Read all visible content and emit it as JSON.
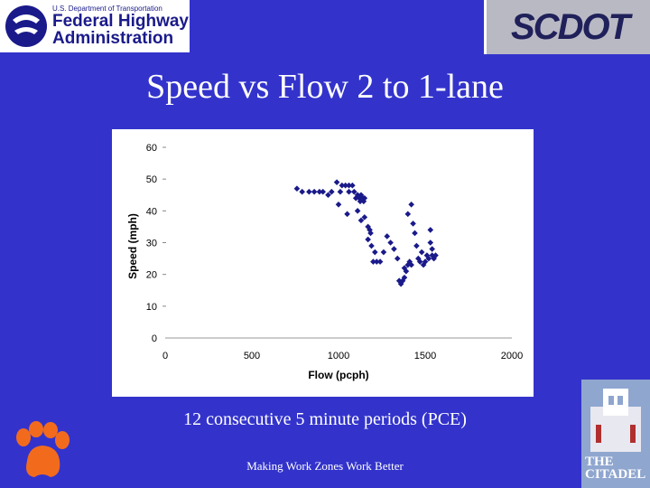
{
  "header": {
    "fhwa_small": "U.S. Department of Transportation",
    "fhwa_line1": "Federal Highway",
    "fhwa_line2": "Administration",
    "scdot": "SCDOT"
  },
  "slide": {
    "title": "Speed vs Flow  2 to 1-lane",
    "subtitle": "12 consecutive 5 minute periods (PCE)",
    "footer": "Making Work Zones Work Better"
  },
  "citadel": {
    "line1": "THE",
    "line2": "CITADEL"
  },
  "colors": {
    "background": "#3333cc",
    "marker": "#1a1a8a"
  },
  "chart_data": {
    "type": "scatter",
    "xlabel": "Flow (pcph)",
    "ylabel": "Speed (mph)",
    "xlim": [
      0,
      2000
    ],
    "ylim": [
      0,
      60
    ],
    "xticks": [
      0,
      500,
      1000,
      1500,
      2000
    ],
    "yticks": [
      0,
      10,
      20,
      30,
      40,
      50,
      60
    ],
    "grid": false,
    "legend": "none",
    "marker": "diamond",
    "points": [
      [
        760,
        47
      ],
      [
        790,
        46
      ],
      [
        830,
        46
      ],
      [
        860,
        46
      ],
      [
        890,
        46
      ],
      [
        910,
        46
      ],
      [
        940,
        45
      ],
      [
        960,
        46
      ],
      [
        990,
        49
      ],
      [
        1010,
        46
      ],
      [
        1020,
        48
      ],
      [
        1040,
        48
      ],
      [
        1060,
        48
      ],
      [
        1060,
        46
      ],
      [
        1080,
        48
      ],
      [
        1090,
        46
      ],
      [
        1100,
        44
      ],
      [
        1110,
        45
      ],
      [
        1120,
        44
      ],
      [
        1130,
        45
      ],
      [
        1140,
        44
      ],
      [
        1150,
        44
      ],
      [
        1125,
        43
      ],
      [
        1145,
        43
      ],
      [
        1000,
        42
      ],
      [
        1050,
        39
      ],
      [
        1110,
        40
      ],
      [
        1130,
        37
      ],
      [
        1150,
        38
      ],
      [
        1170,
        35
      ],
      [
        1180,
        34
      ],
      [
        1185,
        33
      ],
      [
        1170,
        31
      ],
      [
        1190,
        29
      ],
      [
        1210,
        27
      ],
      [
        1200,
        24
      ],
      [
        1220,
        24
      ],
      [
        1240,
        24
      ],
      [
        1260,
        27
      ],
      [
        1280,
        32
      ],
      [
        1300,
        30
      ],
      [
        1320,
        28
      ],
      [
        1340,
        25
      ],
      [
        1350,
        18
      ],
      [
        1360,
        17
      ],
      [
        1370,
        18
      ],
      [
        1380,
        19
      ],
      [
        1380,
        22
      ],
      [
        1390,
        21
      ],
      [
        1400,
        23
      ],
      [
        1410,
        24
      ],
      [
        1420,
        23
      ],
      [
        1400,
        39
      ],
      [
        1420,
        42
      ],
      [
        1430,
        36
      ],
      [
        1440,
        33
      ],
      [
        1450,
        29
      ],
      [
        1460,
        25
      ],
      [
        1470,
        24
      ],
      [
        1480,
        27
      ],
      [
        1490,
        23
      ],
      [
        1500,
        24
      ],
      [
        1510,
        26
      ],
      [
        1520,
        25
      ],
      [
        1530,
        34
      ],
      [
        1530,
        30
      ],
      [
        1540,
        28
      ],
      [
        1540,
        26
      ],
      [
        1550,
        25
      ],
      [
        1560,
        26
      ]
    ]
  }
}
